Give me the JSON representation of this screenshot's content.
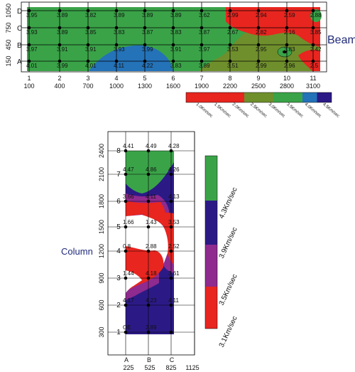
{
  "colors": {
    "green": "#3aa348",
    "olive": "#6f8f2c",
    "red": "#e8251f",
    "blue": "#2472b8",
    "navy": "#2b1a86",
    "purple": "#8f2a8f",
    "white": "#ffffff",
    "grid": "#000000",
    "label_blue": "#1f2a7a"
  },
  "beam": {
    "title": "Beam",
    "rows": [
      "D",
      "C",
      "B",
      "A"
    ],
    "row_dims": [
      "1050",
      "750",
      "450",
      "150"
    ],
    "cols": [
      "1",
      "2",
      "3",
      "4",
      "5",
      "6",
      "7",
      "8",
      "9",
      "10",
      "11"
    ],
    "col_dims": [
      "100",
      "400",
      "700",
      "1000",
      "1300",
      "1600",
      "1900",
      "2200",
      "2500",
      "2800",
      "3100"
    ],
    "values": [
      [
        "3.95",
        "3.89",
        "3.82",
        "3.89",
        "3.89",
        "3.89",
        "3.62",
        "2.99",
        "2.94",
        "2.59",
        "2.88"
      ],
      [
        "3.93",
        "3.89",
        "3.85",
        "3.83",
        "3.87",
        "3.83",
        "3.87",
        "2.67",
        "2.82",
        "2.16",
        "3.85"
      ],
      [
        "3.97",
        "3.91",
        "3.91",
        "3.93",
        "3.99",
        "3.91",
        "3.97",
        "3.53",
        "2.95",
        "3.83",
        "2.42"
      ],
      [
        "4.01",
        "3.99",
        "4.01",
        "4.11",
        "4.22",
        "3.83",
        "3.89",
        "3.51",
        "2.99",
        "2.96",
        "2.5"
      ]
    ],
    "legend": [
      "1.0Km/sec",
      "1.5Km/sec",
      "2.0Km/sec",
      "2.5Km/sec",
      "3.0Km/sec",
      "3.5Km/sec",
      "4.0Km/sec",
      "4.5Km/sec"
    ]
  },
  "column": {
    "title": "Column",
    "cols": [
      "A",
      "B",
      "C"
    ],
    "col_dims": [
      "225",
      "525",
      "825",
      "1125"
    ],
    "rows": [
      "8",
      "7",
      "6",
      "5",
      "4",
      "3",
      "2",
      "1"
    ],
    "row_dims": [
      "2400",
      "2100",
      "1800",
      "1500",
      "1200",
      "900",
      "600",
      "300"
    ],
    "values": [
      [
        "4.41",
        "4.49",
        "4.28"
      ],
      [
        "4.47",
        "4.86",
        "4.26"
      ],
      [
        "3.66",
        "4.11",
        "4.13"
      ],
      [
        "1.66",
        "1.43",
        "3.53"
      ],
      [
        "0.8",
        "2.88",
        "2.52"
      ],
      [
        "1.44",
        "4.18",
        "3.61"
      ],
      [
        "4.17",
        "4.23",
        "4.11"
      ],
      [
        "OE",
        "3.89",
        ""
      ]
    ],
    "legend": [
      "4.3Km/sec",
      "3.9Km/sec",
      "3.5Km/sec",
      "3.1Km/sec"
    ]
  }
}
